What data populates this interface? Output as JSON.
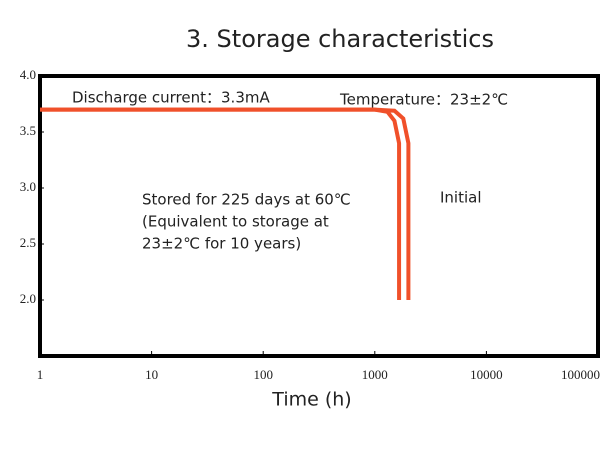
{
  "chart_data": {
    "type": "line",
    "title": "3. Storage characteristics",
    "x_label": "Time (h)",
    "xscale": "log",
    "xlim": [
      1,
      100000
    ],
    "xticks": [
      1,
      10,
      100,
      1000,
      10000,
      100000
    ],
    "ylim": [
      1.5,
      4.0
    ],
    "yticks": [
      {
        "value": 2.0,
        "label": "2.0"
      },
      {
        "value": 2.5,
        "label": "2.5"
      },
      {
        "value": 3.0,
        "label": "3.0"
      },
      {
        "value": 3.5,
        "label": "3.5"
      },
      {
        "value": 4.0,
        "label": "4.0"
      }
    ],
    "annotations": [
      "Discharge current：3.3mA",
      "Temperature：23±2℃",
      "Stored for 225 days at 60℃",
      "(Equivalent to storage at",
      "23±2℃ for 10 years)",
      "Initial"
    ],
    "series": [
      {
        "color": "#f0502a",
        "x": [
          1,
          1000,
          1300,
          1500,
          1650,
          1650
        ],
        "values": [
          3.7,
          3.7,
          3.68,
          3.6,
          3.4,
          2.0
        ]
      },
      {
        "color": "#f0502a",
        "x": [
          1,
          1000,
          1500,
          1800,
          2000,
          2000
        ],
        "values": [
          3.7,
          3.7,
          3.69,
          3.62,
          3.4,
          2.0
        ]
      }
    ]
  }
}
